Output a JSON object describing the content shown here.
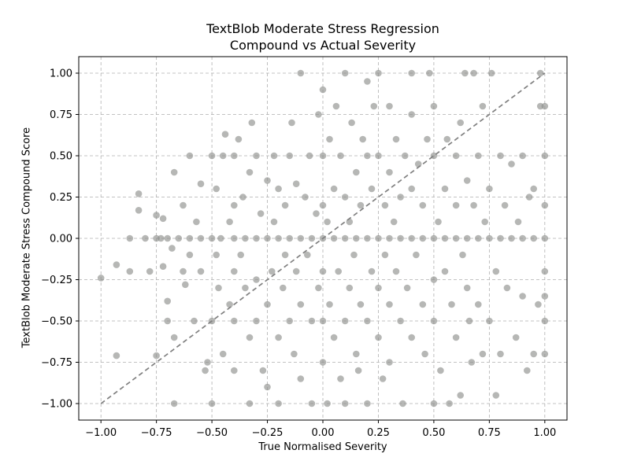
{
  "chart_data": {
    "type": "scatter",
    "title_lines": [
      "TextBlob Moderate Stress Regression",
      "Compound vs Actual Severity"
    ],
    "xlabel": "True Normalised Severity",
    "ylabel": "TextBlob Moderate Stress Compound Score",
    "xlim": [
      -1.1,
      1.1
    ],
    "ylim": [
      -1.1,
      1.1
    ],
    "xticks": [
      -1.0,
      -0.75,
      -0.5,
      -0.25,
      0.0,
      0.25,
      0.5,
      0.75,
      1.0
    ],
    "xtick_labels": [
      "−1.00",
      "−0.75",
      "−0.50",
      "−0.25",
      "0.00",
      "0.25",
      "0.50",
      "0.75",
      "1.00"
    ],
    "yticks": [
      -1.0,
      -0.75,
      -0.5,
      -0.25,
      0.0,
      0.25,
      0.5,
      0.75,
      1.0
    ],
    "ytick_labels": [
      "−1.00",
      "−0.75",
      "−0.50",
      "−0.25",
      "0.00",
      "0.25",
      "0.50",
      "0.75",
      "1.00"
    ],
    "grid": true,
    "point_color": "#8f918e",
    "reference_line": {
      "x": [
        -1.0,
        1.0
      ],
      "y": [
        -1.0,
        1.0
      ],
      "color": "#808080",
      "style": "dashed"
    },
    "series": [
      {
        "points": [
          [
            -1.0,
            -0.24
          ],
          [
            -0.93,
            -0.71
          ],
          [
            -0.93,
            -0.16
          ],
          [
            -0.87,
            -0.2
          ],
          [
            -0.87,
            0.0
          ],
          [
            -0.83,
            0.27
          ],
          [
            -0.83,
            0.17
          ],
          [
            -0.8,
            0.0
          ],
          [
            -0.78,
            -0.2
          ],
          [
            -0.75,
            0.0
          ],
          [
            -0.75,
            0.14
          ],
          [
            -0.75,
            -0.71
          ],
          [
            -0.73,
            0.0
          ],
          [
            -0.72,
            -0.17
          ],
          [
            -0.72,
            0.12
          ],
          [
            -0.7,
            0.0
          ],
          [
            -0.7,
            -0.38
          ],
          [
            -0.7,
            -0.5
          ],
          [
            -0.68,
            -0.06
          ],
          [
            -0.67,
            0.4
          ],
          [
            -0.67,
            -0.6
          ],
          [
            -0.67,
            -1.0
          ],
          [
            -0.65,
            0.0
          ],
          [
            -0.63,
            -0.2
          ],
          [
            -0.63,
            0.2
          ],
          [
            -0.62,
            -0.28
          ],
          [
            -0.6,
            -0.1
          ],
          [
            -0.6,
            0.0
          ],
          [
            -0.6,
            0.5
          ],
          [
            -0.58,
            -0.5
          ],
          [
            -0.57,
            0.1
          ],
          [
            -0.55,
            0.0
          ],
          [
            -0.55,
            -0.2
          ],
          [
            -0.55,
            0.33
          ],
          [
            -0.53,
            -0.8
          ],
          [
            -0.52,
            -0.75
          ],
          [
            -0.5,
            0.0
          ],
          [
            -0.5,
            -0.5
          ],
          [
            -0.5,
            0.5
          ],
          [
            -0.5,
            -1.0
          ],
          [
            -0.48,
            -0.1
          ],
          [
            -0.48,
            0.3
          ],
          [
            -0.47,
            -0.3
          ],
          [
            -0.46,
            0.0
          ],
          [
            -0.45,
            0.5
          ],
          [
            -0.45,
            -0.7
          ],
          [
            -0.44,
            0.63
          ],
          [
            -0.42,
            0.1
          ],
          [
            -0.42,
            -0.4
          ],
          [
            -0.4,
            -0.2
          ],
          [
            -0.4,
            0.0
          ],
          [
            -0.4,
            0.2
          ],
          [
            -0.4,
            -0.5
          ],
          [
            -0.4,
            0.5
          ],
          [
            -0.4,
            -0.8
          ],
          [
            -0.38,
            0.6
          ],
          [
            -0.37,
            -0.1
          ],
          [
            -0.36,
            0.25
          ],
          [
            -0.35,
            -0.3
          ],
          [
            -0.35,
            0.0
          ],
          [
            -0.33,
            0.4
          ],
          [
            -0.33,
            -0.6
          ],
          [
            -0.33,
            -1.0
          ],
          [
            -0.32,
            0.7
          ],
          [
            -0.3,
            0.0
          ],
          [
            -0.3,
            -0.5
          ],
          [
            -0.3,
            0.5
          ],
          [
            -0.3,
            -0.25
          ],
          [
            -0.28,
            0.15
          ],
          [
            -0.27,
            -0.8
          ],
          [
            -0.25,
            0.0
          ],
          [
            -0.25,
            -0.4
          ],
          [
            -0.25,
            0.35
          ],
          [
            -0.25,
            -0.9
          ],
          [
            -0.23,
            -0.2
          ],
          [
            -0.22,
            0.1
          ],
          [
            -0.22,
            0.5
          ],
          [
            -0.2,
            0.0
          ],
          [
            -0.2,
            -0.6
          ],
          [
            -0.2,
            0.3
          ],
          [
            -0.2,
            -1.0
          ],
          [
            -0.18,
            -0.3
          ],
          [
            -0.17,
            0.2
          ],
          [
            -0.17,
            -0.1
          ],
          [
            -0.15,
            0.0
          ],
          [
            -0.15,
            0.5
          ],
          [
            -0.15,
            -0.5
          ],
          [
            -0.14,
            0.7
          ],
          [
            -0.13,
            -0.7
          ],
          [
            -0.12,
            0.33
          ],
          [
            -0.12,
            -0.2
          ],
          [
            -0.1,
            0.0
          ],
          [
            -0.1,
            1.0
          ],
          [
            -0.1,
            -0.4
          ],
          [
            -0.1,
            -0.85
          ],
          [
            -0.08,
            0.25
          ],
          [
            -0.07,
            -0.1
          ],
          [
            -0.06,
            0.5
          ],
          [
            -0.05,
            0.0
          ],
          [
            -0.05,
            -0.5
          ],
          [
            -0.05,
            -1.0
          ],
          [
            -0.03,
            0.15
          ],
          [
            -0.02,
            -0.3
          ],
          [
            -0.02,
            0.75
          ],
          [
            0.0,
            0.0
          ],
          [
            0.0,
            0.2
          ],
          [
            0.0,
            -0.2
          ],
          [
            0.0,
            0.5
          ],
          [
            0.0,
            -0.5
          ],
          [
            0.0,
            0.9
          ],
          [
            0.0,
            -0.75
          ],
          [
            0.02,
            -1.0
          ],
          [
            0.02,
            0.1
          ],
          [
            0.03,
            0.6
          ],
          [
            0.03,
            -0.4
          ],
          [
            0.05,
            0.0
          ],
          [
            0.05,
            0.3
          ],
          [
            0.05,
            -0.6
          ],
          [
            0.06,
            0.8
          ],
          [
            0.07,
            -0.2
          ],
          [
            0.08,
            0.5
          ],
          [
            0.08,
            -0.85
          ],
          [
            0.1,
            0.0
          ],
          [
            0.1,
            0.25
          ],
          [
            0.1,
            -0.5
          ],
          [
            0.1,
            1.0
          ],
          [
            0.1,
            -1.0
          ],
          [
            0.12,
            0.1
          ],
          [
            0.12,
            -0.3
          ],
          [
            0.13,
            0.7
          ],
          [
            0.14,
            -0.1
          ],
          [
            0.15,
            0.0
          ],
          [
            0.15,
            0.4
          ],
          [
            0.15,
            -0.7
          ],
          [
            0.16,
            -0.8
          ],
          [
            0.17,
            0.2
          ],
          [
            0.17,
            -0.4
          ],
          [
            0.18,
            0.6
          ],
          [
            0.2,
            0.0
          ],
          [
            0.2,
            0.5
          ],
          [
            0.2,
            -0.5
          ],
          [
            0.2,
            0.95
          ],
          [
            0.2,
            -1.0
          ],
          [
            0.22,
            -0.2
          ],
          [
            0.22,
            0.3
          ],
          [
            0.23,
            0.8
          ],
          [
            0.25,
            0.0
          ],
          [
            0.25,
            -0.3
          ],
          [
            0.25,
            0.5
          ],
          [
            0.25,
            -0.6
          ],
          [
            0.25,
            1.0
          ],
          [
            0.27,
            -0.85
          ],
          [
            0.28,
            0.2
          ],
          [
            0.28,
            -0.1
          ],
          [
            0.3,
            0.0
          ],
          [
            0.3,
            0.4
          ],
          [
            0.3,
            -0.4
          ],
          [
            0.3,
            0.8
          ],
          [
            0.3,
            -0.75
          ],
          [
            0.32,
            0.1
          ],
          [
            0.33,
            -0.2
          ],
          [
            0.33,
            0.6
          ],
          [
            0.35,
            0.0
          ],
          [
            0.35,
            -0.5
          ],
          [
            0.35,
            0.25
          ],
          [
            0.36,
            -1.0
          ],
          [
            0.37,
            0.5
          ],
          [
            0.38,
            -0.3
          ],
          [
            0.4,
            0.0
          ],
          [
            0.4,
            0.3
          ],
          [
            0.4,
            -0.6
          ],
          [
            0.4,
            0.75
          ],
          [
            0.4,
            1.0
          ],
          [
            0.42,
            -0.1
          ],
          [
            0.43,
            0.45
          ],
          [
            0.45,
            0.0
          ],
          [
            0.45,
            -0.4
          ],
          [
            0.45,
            0.2
          ],
          [
            0.46,
            -0.7
          ],
          [
            0.47,
            0.6
          ],
          [
            0.48,
            1.0
          ],
          [
            0.5,
            0.0
          ],
          [
            0.5,
            0.5
          ],
          [
            0.5,
            -0.5
          ],
          [
            0.5,
            -0.25
          ],
          [
            0.5,
            0.8
          ],
          [
            0.5,
            -1.0
          ],
          [
            0.52,
            0.1
          ],
          [
            0.53,
            -0.8
          ],
          [
            0.55,
            0.3
          ],
          [
            0.55,
            -0.2
          ],
          [
            0.55,
            0.0
          ],
          [
            0.56,
            0.6
          ],
          [
            0.57,
            -1.0
          ],
          [
            0.58,
            -0.4
          ],
          [
            0.6,
            0.0
          ],
          [
            0.6,
            0.2
          ],
          [
            0.6,
            -0.6
          ],
          [
            0.6,
            0.5
          ],
          [
            0.62,
            -0.95
          ],
          [
            0.62,
            0.7
          ],
          [
            0.63,
            -0.1
          ],
          [
            0.64,
            1.0
          ],
          [
            0.65,
            0.0
          ],
          [
            0.65,
            -0.3
          ],
          [
            0.65,
            0.35
          ],
          [
            0.66,
            -0.5
          ],
          [
            0.67,
            -0.75
          ],
          [
            0.68,
            1.0
          ],
          [
            0.68,
            0.2
          ],
          [
            0.7,
            0.0
          ],
          [
            0.7,
            -0.4
          ],
          [
            0.7,
            0.5
          ],
          [
            0.72,
            0.8
          ],
          [
            0.72,
            -0.7
          ],
          [
            0.73,
            0.1
          ],
          [
            0.75,
            0.0
          ],
          [
            0.75,
            -0.5
          ],
          [
            0.75,
            0.3
          ],
          [
            0.76,
            1.0
          ],
          [
            0.78,
            -0.95
          ],
          [
            0.78,
            -0.2
          ],
          [
            0.8,
            0.0
          ],
          [
            0.8,
            0.5
          ],
          [
            0.8,
            -0.7
          ],
          [
            0.82,
            0.2
          ],
          [
            0.83,
            -0.3
          ],
          [
            0.85,
            0.0
          ],
          [
            0.85,
            0.45
          ],
          [
            0.87,
            -0.6
          ],
          [
            0.88,
            0.1
          ],
          [
            0.9,
            0.0
          ],
          [
            0.9,
            -0.35
          ],
          [
            0.9,
            0.5
          ],
          [
            0.92,
            -0.8
          ],
          [
            0.93,
            0.25
          ],
          [
            0.95,
            0.0
          ],
          [
            0.95,
            -0.7
          ],
          [
            0.95,
            0.3
          ],
          [
            0.97,
            -0.4
          ],
          [
            0.98,
            0.8
          ],
          [
            0.98,
            1.0
          ],
          [
            1.0,
            0.0
          ],
          [
            1.0,
            0.5
          ],
          [
            1.0,
            -0.5
          ],
          [
            1.0,
            0.2
          ],
          [
            1.0,
            -0.2
          ],
          [
            1.0,
            0.8
          ],
          [
            1.0,
            -0.7
          ],
          [
            1.0,
            -0.35
          ]
        ]
      }
    ]
  }
}
